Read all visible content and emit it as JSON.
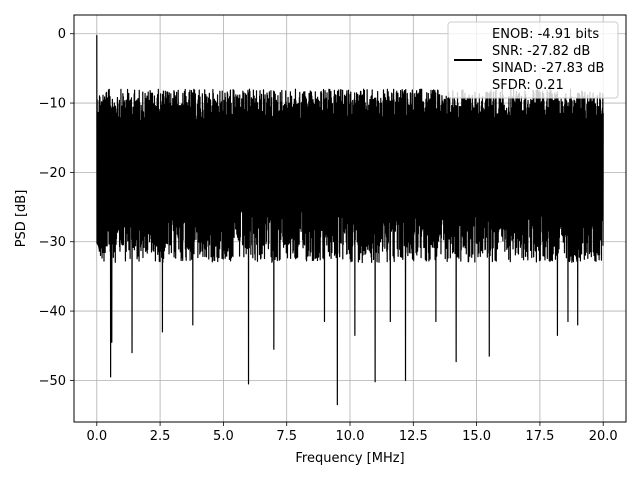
{
  "chart_data": {
    "type": "line",
    "title": "",
    "xlabel": "Frequency [MHz]",
    "ylabel": "PSD [dB]",
    "xlim": [
      -0.9,
      20.9
    ],
    "ylim": [
      -56,
      2.7
    ],
    "xticks": [
      0.0,
      2.5,
      5.0,
      7.5,
      10.0,
      12.5,
      15.0,
      17.5,
      20.0
    ],
    "xtick_labels": [
      "0.0",
      "2.5",
      "5.0",
      "7.5",
      "10.0",
      "12.5",
      "15.0",
      "17.5",
      "20.0"
    ],
    "yticks": [
      0,
      -10,
      -20,
      -30,
      -40,
      -50
    ],
    "ytick_labels": [
      "0",
      "−10",
      "−20",
      "−30",
      "−40",
      "−50"
    ],
    "grid": true,
    "legend_position": "top-right",
    "series": [
      {
        "name": "ENOB: -4.91 bits\nSNR: -27.82 dB\nSINAD: -27.83 dB\nSFDR: 0.21",
        "legend_lines": [
          "ENOB: -4.91 bits",
          "SNR: -27.82 dB",
          "SINAD: -27.83 dB",
          "SFDR: 0.21"
        ],
        "color": "#000000",
        "description": "dense noise-like PSD spanning 0 to 20 MHz, upper envelope near -8 dB, lower envelope mostly -25 to -35 dB",
        "x_range": [
          0.0,
          20.0
        ],
        "peak": {
          "x": 0.0,
          "y": -0.2
        },
        "upper_envelope_typical": -8,
        "lower_envelope_typical": -31,
        "notable_minima": [
          {
            "x": 0.55,
            "y": -49.5
          },
          {
            "x": 0.6,
            "y": -44.5
          },
          {
            "x": 1.4,
            "y": -46
          },
          {
            "x": 2.6,
            "y": -43
          },
          {
            "x": 3.8,
            "y": -42
          },
          {
            "x": 6.0,
            "y": -41.5
          },
          {
            "x": 6.0,
            "y": -50.5
          },
          {
            "x": 7.0,
            "y": -45.5
          },
          {
            "x": 9.0,
            "y": -41.5
          },
          {
            "x": 9.5,
            "y": -53.5
          },
          {
            "x": 10.2,
            "y": -43.5
          },
          {
            "x": 11.0,
            "y": -50.2
          },
          {
            "x": 11.6,
            "y": -41.5
          },
          {
            "x": 12.2,
            "y": -50
          },
          {
            "x": 13.4,
            "y": -41.5
          },
          {
            "x": 14.2,
            "y": -47.3
          },
          {
            "x": 15.5,
            "y": -46.5
          },
          {
            "x": 18.2,
            "y": -43.5
          },
          {
            "x": 18.6,
            "y": -41.5
          },
          {
            "x": 19.0,
            "y": -42
          }
        ]
      }
    ]
  }
}
